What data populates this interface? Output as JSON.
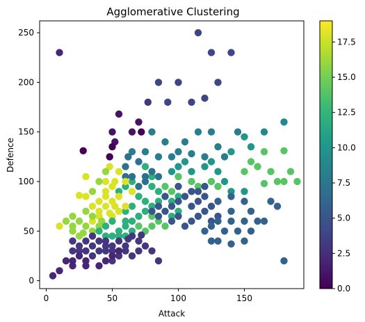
{
  "chart_data": {
    "type": "scatter",
    "title": "Agglomerative Clustering",
    "xlabel": "Attack",
    "ylabel": "Defence",
    "xlim": [
      -5,
      195
    ],
    "ylim": [
      -8,
      262
    ],
    "xticks": [
      0,
      50,
      100,
      150
    ],
    "yticks": [
      0,
      50,
      100,
      150,
      200,
      250
    ],
    "colorbar": {
      "colormap": "viridis",
      "range": [
        0,
        19
      ],
      "ticks": [
        0.0,
        2.5,
        5.0,
        7.5,
        10.0,
        12.5,
        15.0,
        17.5
      ],
      "tick_labels": [
        "0.0",
        "2.5",
        "5.0",
        "7.5",
        "10.0",
        "12.5",
        "15.0",
        "17.5"
      ]
    },
    "grid": false,
    "points": [
      [
        10,
        230,
        2
      ],
      [
        115,
        250,
        4
      ],
      [
        125,
        230,
        4
      ],
      [
        140,
        230,
        4
      ],
      [
        130,
        200,
        4
      ],
      [
        85,
        200,
        4
      ],
      [
        100,
        200,
        4
      ],
      [
        92,
        180,
        4
      ],
      [
        110,
        180,
        4
      ],
      [
        120,
        184,
        4
      ],
      [
        77,
        180,
        3
      ],
      [
        55,
        168,
        1
      ],
      [
        50,
        150,
        1
      ],
      [
        52,
        140,
        1
      ],
      [
        70,
        160,
        1
      ],
      [
        72,
        150,
        0
      ],
      [
        48,
        125,
        0
      ],
      [
        50,
        135,
        0
      ],
      [
        28,
        131,
        0
      ],
      [
        65,
        150,
        1
      ],
      [
        80,
        150,
        8
      ],
      [
        90,
        140,
        8
      ],
      [
        105,
        140,
        8
      ],
      [
        115,
        150,
        8
      ],
      [
        125,
        150,
        8
      ],
      [
        130,
        135,
        8
      ],
      [
        145,
        150,
        8
      ],
      [
        85,
        125,
        8
      ],
      [
        95,
        125,
        8
      ],
      [
        100,
        130,
        8
      ],
      [
        120,
        125,
        8
      ],
      [
        135,
        125,
        8
      ],
      [
        110,
        128,
        8
      ],
      [
        75,
        130,
        8
      ],
      [
        65,
        130,
        8
      ],
      [
        165,
        150,
        9
      ],
      [
        180,
        160,
        9
      ],
      [
        150,
        145,
        10
      ],
      [
        155,
        135,
        10
      ],
      [
        140,
        130,
        10
      ],
      [
        125,
        120,
        10
      ],
      [
        120,
        115,
        10
      ],
      [
        105,
        120,
        10
      ],
      [
        100,
        115,
        10
      ],
      [
        130,
        110,
        10
      ],
      [
        135,
        100,
        10
      ],
      [
        140,
        90,
        10
      ],
      [
        150,
        90,
        10
      ],
      [
        95,
        110,
        10
      ],
      [
        110,
        110,
        10
      ],
      [
        165,
        130,
        14
      ],
      [
        155,
        120,
        14
      ],
      [
        160,
        115,
        14
      ],
      [
        170,
        110,
        14
      ],
      [
        180,
        131,
        14
      ],
      [
        185,
        110,
        14
      ],
      [
        175,
        100,
        14
      ],
      [
        165,
        98,
        14
      ],
      [
        180,
        100,
        14
      ],
      [
        190,
        100,
        14
      ],
      [
        150,
        110,
        14
      ],
      [
        100,
        105,
        14
      ],
      [
        110,
        100,
        14
      ],
      [
        115,
        95,
        14
      ],
      [
        90,
        95,
        14
      ],
      [
        95,
        90,
        14
      ],
      [
        80,
        65,
        14
      ],
      [
        85,
        60,
        14
      ],
      [
        90,
        55,
        14
      ],
      [
        80,
        55,
        14
      ],
      [
        75,
        50,
        14
      ],
      [
        70,
        55,
        14
      ],
      [
        125,
        100,
        14
      ],
      [
        130,
        95,
        14
      ],
      [
        70,
        85,
        12
      ],
      [
        75,
        80,
        12
      ],
      [
        80,
        75,
        12
      ],
      [
        85,
        80,
        12
      ],
      [
        65,
        75,
        12
      ],
      [
        60,
        70,
        12
      ],
      [
        70,
        65,
        12
      ],
      [
        75,
        70,
        12
      ],
      [
        85,
        90,
        12
      ],
      [
        90,
        85,
        12
      ],
      [
        95,
        80,
        12
      ],
      [
        80,
        95,
        12
      ],
      [
        60,
        95,
        12
      ],
      [
        65,
        100,
        12
      ],
      [
        55,
        90,
        12
      ],
      [
        75,
        115,
        12
      ],
      [
        80,
        105,
        12
      ],
      [
        100,
        85,
        12
      ],
      [
        65,
        60,
        12
      ],
      [
        60,
        60,
        12
      ],
      [
        100,
        70,
        12
      ],
      [
        95,
        65,
        12
      ],
      [
        90,
        85,
        5
      ],
      [
        95,
        75,
        5
      ],
      [
        100,
        80,
        5
      ],
      [
        105,
        85,
        5
      ],
      [
        110,
        75,
        5
      ],
      [
        115,
        80,
        5
      ],
      [
        120,
        85,
        5
      ],
      [
        125,
        75,
        5
      ],
      [
        90,
        70,
        5
      ],
      [
        100,
        65,
        5
      ],
      [
        110,
        60,
        5
      ],
      [
        115,
        65,
        5
      ],
      [
        120,
        70,
        5
      ],
      [
        95,
        60,
        5
      ],
      [
        85,
        65,
        5
      ],
      [
        105,
        55,
        5
      ],
      [
        80,
        70,
        5
      ],
      [
        125,
        60,
        5
      ],
      [
        130,
        65,
        5
      ],
      [
        110,
        90,
        5
      ],
      [
        100,
        95,
        5
      ],
      [
        120,
        95,
        5
      ],
      [
        115,
        90,
        5
      ],
      [
        85,
        75,
        5
      ],
      [
        125,
        55,
        6
      ],
      [
        130,
        60,
        6
      ],
      [
        140,
        60,
        6
      ],
      [
        150,
        60,
        6
      ],
      [
        140,
        70,
        6
      ],
      [
        130,
        80,
        6
      ],
      [
        140,
        85,
        6
      ],
      [
        150,
        80,
        6
      ],
      [
        160,
        60,
        6
      ],
      [
        165,
        60,
        6
      ],
      [
        170,
        80,
        6
      ],
      [
        175,
        75,
        6
      ],
      [
        155,
        70,
        6
      ],
      [
        135,
        50,
        6
      ],
      [
        145,
        50,
        6
      ],
      [
        155,
        50,
        6
      ],
      [
        120,
        50,
        6
      ],
      [
        130,
        40,
        6
      ],
      [
        140,
        37,
        6
      ],
      [
        150,
        40,
        6
      ],
      [
        125,
        40,
        6
      ],
      [
        180,
        20,
        6
      ],
      [
        70,
        120,
        7
      ],
      [
        85,
        105,
        7
      ],
      [
        60,
        115,
        7
      ],
      [
        62,
        125,
        7
      ],
      [
        75,
        105,
        7
      ],
      [
        80,
        110,
        7
      ],
      [
        65,
        105,
        7
      ],
      [
        70,
        95,
        7
      ],
      [
        75,
        100,
        7
      ],
      [
        60,
        105,
        7
      ],
      [
        50,
        80,
        18
      ],
      [
        45,
        75,
        18
      ],
      [
        55,
        70,
        18
      ],
      [
        50,
        65,
        18
      ],
      [
        45,
        85,
        18
      ],
      [
        40,
        70,
        18
      ],
      [
        55,
        85,
        18
      ],
      [
        60,
        75,
        18
      ],
      [
        65,
        90,
        18
      ],
      [
        40,
        80,
        18
      ],
      [
        35,
        75,
        18
      ],
      [
        30,
        85,
        18
      ],
      [
        25,
        86,
        18
      ],
      [
        45,
        100,
        18
      ],
      [
        52,
        100,
        18
      ],
      [
        48,
        115,
        18
      ],
      [
        55,
        110,
        18
      ],
      [
        30,
        105,
        18
      ],
      [
        60,
        100,
        18
      ],
      [
        10,
        55,
        18
      ],
      [
        40,
        65,
        18
      ],
      [
        35,
        60,
        18
      ],
      [
        50,
        95,
        18
      ],
      [
        45,
        90,
        18
      ],
      [
        52,
        75,
        18
      ],
      [
        48,
        68,
        18
      ],
      [
        20,
        65,
        16
      ],
      [
        25,
        60,
        16
      ],
      [
        30,
        55,
        16
      ],
      [
        35,
        50,
        16
      ],
      [
        20,
        55,
        16
      ],
      [
        40,
        55,
        16
      ],
      [
        30,
        70,
        16
      ],
      [
        35,
        90,
        16
      ],
      [
        40,
        100,
        16
      ],
      [
        45,
        110,
        16
      ],
      [
        15,
        60,
        16
      ],
      [
        25,
        45,
        16
      ],
      [
        20,
        50,
        16
      ],
      [
        35,
        65,
        16
      ],
      [
        28,
        48,
        16
      ],
      [
        42,
        60,
        16
      ],
      [
        40,
        50,
        12
      ],
      [
        45,
        55,
        12
      ],
      [
        50,
        60,
        12
      ],
      [
        55,
        50,
        12
      ],
      [
        60,
        55,
        12
      ],
      [
        55,
        45,
        12
      ],
      [
        65,
        50,
        12
      ],
      [
        45,
        45,
        12
      ],
      [
        60,
        45,
        12
      ],
      [
        50,
        45,
        12
      ],
      [
        20,
        40,
        3
      ],
      [
        25,
        35,
        3
      ],
      [
        30,
        40,
        3
      ],
      [
        35,
        45,
        3
      ],
      [
        40,
        40,
        3
      ],
      [
        45,
        35,
        3
      ],
      [
        50,
        30,
        3
      ],
      [
        55,
        40,
        3
      ],
      [
        60,
        35,
        3
      ],
      [
        65,
        45,
        3
      ],
      [
        70,
        40,
        3
      ],
      [
        75,
        35,
        3
      ],
      [
        80,
        30,
        3
      ],
      [
        70,
        30,
        3
      ],
      [
        65,
        25,
        3
      ],
      [
        60,
        30,
        3
      ],
      [
        55,
        25,
        3
      ],
      [
        50,
        35,
        3
      ],
      [
        45,
        40,
        3
      ],
      [
        35,
        35,
        3
      ],
      [
        30,
        30,
        3
      ],
      [
        25,
        30,
        3
      ],
      [
        20,
        30,
        3
      ],
      [
        40,
        30,
        3
      ],
      [
        35,
        25,
        3
      ],
      [
        45,
        30,
        3
      ],
      [
        85,
        20,
        3
      ],
      [
        50,
        20,
        3
      ],
      [
        55,
        30,
        3
      ],
      [
        62,
        42,
        3
      ],
      [
        72,
        46,
        3
      ],
      [
        5,
        5,
        2
      ],
      [
        10,
        10,
        2
      ],
      [
        15,
        20,
        2
      ],
      [
        20,
        20,
        2
      ],
      [
        20,
        15,
        2
      ],
      [
        30,
        15,
        2
      ],
      [
        40,
        15,
        2
      ],
      [
        45,
        20,
        2
      ],
      [
        50,
        25,
        2
      ],
      [
        55,
        30,
        2
      ],
      [
        25,
        25,
        2
      ],
      [
        30,
        20,
        2
      ]
    ]
  }
}
